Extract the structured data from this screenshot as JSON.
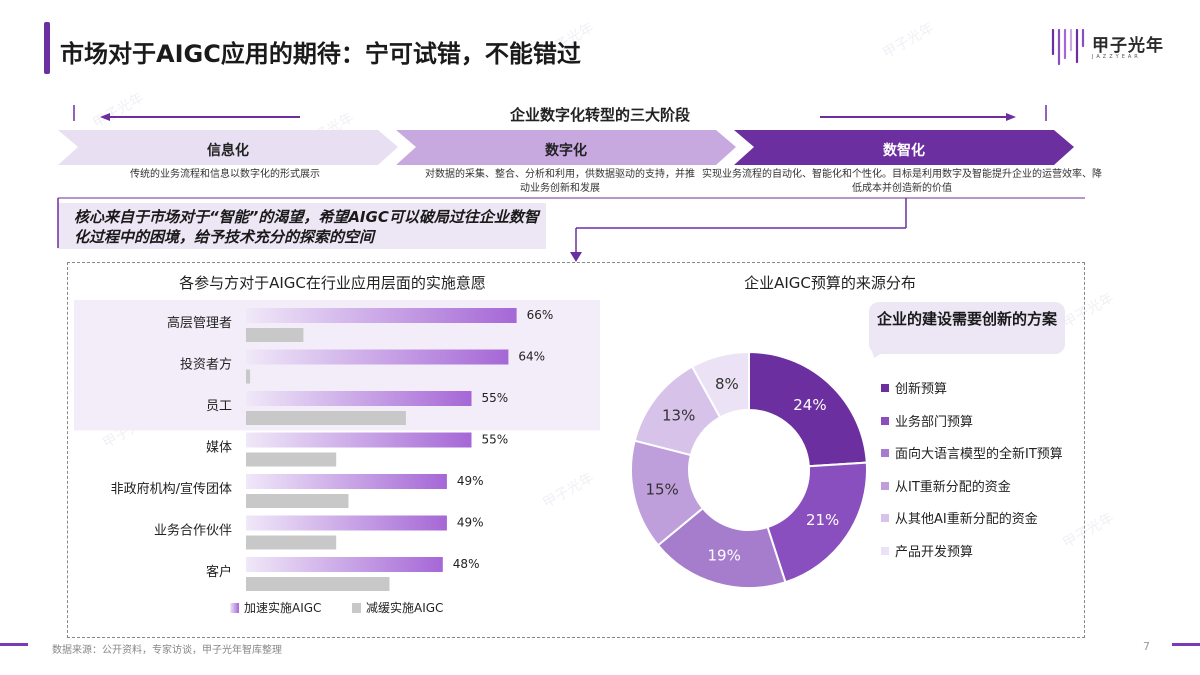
{
  "header": {
    "title": "市场对于AIGC应用的期待：宁可试错，不能错过"
  },
  "logo": {
    "name": "甲子光年",
    "sub": "JAZZYEAR",
    "icon": "jazzyear-logo-icon"
  },
  "stages": {
    "heading": "企业数字化转型的三大阶段",
    "items": [
      {
        "label": "信息化",
        "desc": "传统的业务流程和信息以数字化的形式展示",
        "color": "#e9dff2",
        "text_color": "#222222"
      },
      {
        "label": "数字化",
        "desc": "对数据的采集、整合、分析和利用，供数据驱动的支持，并推动业务创新和发展",
        "color": "#c7a9e0",
        "text_color": "#222222"
      },
      {
        "label": "数智化",
        "desc": "实现业务流程的自动化、智能化和个性化。目标是利用数字及智能提升企业的运营效率、降低成本并创造新的价值",
        "color": "#6b2fa0",
        "text_color": "#ffffff"
      }
    ]
  },
  "callout": {
    "text": "核心来自于市场对于“智能”的渴望，希望AIGC可以破局过往企业数智化过程中的困境，给予技术充分的探索的空间"
  },
  "bar_chart_title": "各参与方对于AIGC在行业应用层面的实施意愿",
  "pie_chart_title": "企业AIGC预算的来源分布",
  "bubble": {
    "text": "企业的建设需要创新的方案"
  },
  "colors": {
    "accent": "#6b2fa0",
    "bar_accel_start": "#f0e8f8",
    "bar_accel_end": "#a567d6",
    "bar_slow": "#c8c8c8",
    "highlight_band": "#f3edf9"
  },
  "chart_data": [
    {
      "type": "bar",
      "orientation": "horizontal",
      "title": "各参与方对于AIGC在行业应用层面的实施意愿",
      "categories": [
        "高层管理者",
        "投资者方",
        "员工",
        "媒体",
        "非政府机构/宣传团体",
        "业务合作伙伴",
        "客户"
      ],
      "series": [
        {
          "name": "加速实施AIGC",
          "values": [
            66,
            64,
            55,
            55,
            49,
            49,
            48
          ],
          "labels": [
            "66%",
            "64%",
            "55%",
            "55%",
            "49%",
            "49%",
            "48%"
          ]
        },
        {
          "name": "减缓实施AIGC",
          "values": [
            14,
            1,
            39,
            22,
            25,
            22,
            35
          ]
        }
      ],
      "highlighted_categories": [
        "高层管理者",
        "投资者方",
        "员工"
      ],
      "legend": "bottom",
      "xlim": [
        0,
        100
      ]
    },
    {
      "type": "pie",
      "variant": "donut",
      "title": "企业AIGC预算的来源分布",
      "slices": [
        {
          "name": "创新预算",
          "value": 24,
          "label": "24%",
          "color": "#6b2fa0"
        },
        {
          "name": "业务部门预算",
          "value": 21,
          "label": "21%",
          "color": "#8a4fbf"
        },
        {
          "name": "面向大语言模型的全新IT预算",
          "value": 19,
          "label": "19%",
          "color": "#a67ccc"
        },
        {
          "name": "从IT重新分配的资金",
          "value": 15,
          "label": "15%",
          "color": "#bf9fdb"
        },
        {
          "name": "从其他AI重新分配的资金",
          "value": 13,
          "label": "13%",
          "color": "#d7c3ea"
        },
        {
          "name": "产品开发预算",
          "value": 8,
          "label": "8%",
          "color": "#ece2f5"
        }
      ],
      "legend": "right"
    }
  ],
  "footer": {
    "source": "数据来源：公开资料，专家访谈，甲子光年智库整理",
    "page": "7"
  }
}
